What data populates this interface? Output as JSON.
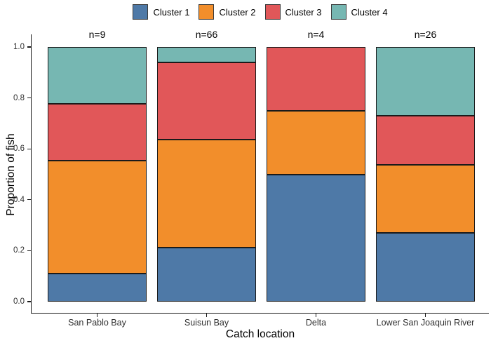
{
  "chart_data": {
    "type": "bar",
    "subtype": "stacked-proportion",
    "title": "",
    "xlabel": "Catch location",
    "ylabel": "Proportion of fish",
    "categories": [
      "San Pablo Bay",
      "Suisun Bay",
      "Delta",
      "Lower San Joaquin River"
    ],
    "bar_annotations": [
      "n=9",
      "n=66",
      "n=4",
      "n=26"
    ],
    "series": [
      {
        "name": "Cluster 1",
        "color": "#4E79A7",
        "values": [
          0.111,
          0.212,
          0.5,
          0.269
        ]
      },
      {
        "name": "Cluster 2",
        "color": "#F28E2B",
        "values": [
          0.444,
          0.424,
          0.25,
          0.269
        ]
      },
      {
        "name": "Cluster 3",
        "color": "#E15759",
        "values": [
          0.222,
          0.303,
          0.25,
          0.192
        ]
      },
      {
        "name": "Cluster 4",
        "color": "#76B7B2",
        "values": [
          0.222,
          0.061,
          0.0,
          0.269
        ]
      }
    ],
    "ylim": [
      0.0,
      1.0
    ],
    "yticks": [
      "0.0",
      "0.2",
      "0.4",
      "0.6",
      "0.8",
      "1.0"
    ],
    "legend_position": "top-center",
    "grid": false,
    "axis_color": "#1a1a1a",
    "bar_border_color": "#1a1a1a"
  }
}
